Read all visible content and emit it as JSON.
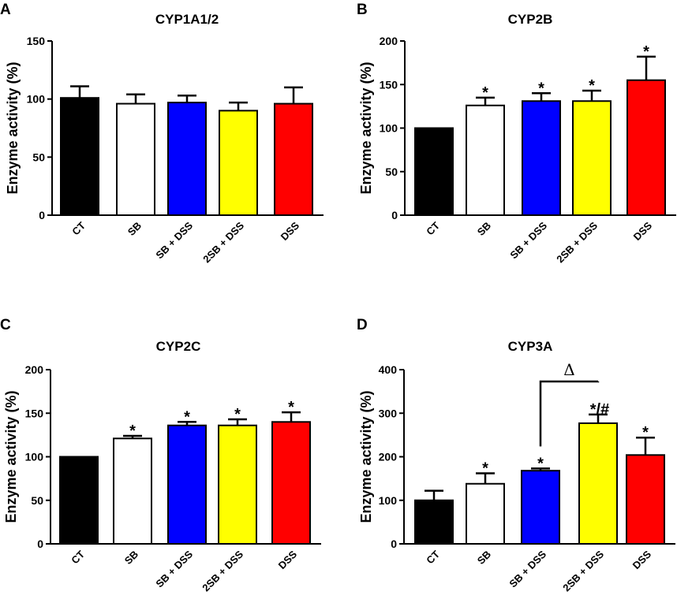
{
  "chart_data": [
    {
      "type": "bar",
      "panel_label": "A",
      "title": "CYP1A1/2",
      "ylabel": "Enzyme activity (%)",
      "xlabel": "",
      "ylim": [
        0,
        150
      ],
      "yticks": [
        0,
        50,
        100,
        150
      ],
      "categories": [
        "CT",
        "SB",
        "SB + DSS",
        "2SB + DSS",
        "DSS"
      ],
      "colors": [
        "#000000",
        "#ffffff",
        "#0000ff",
        "#ffff00",
        "#ff0000"
      ],
      "values": [
        101,
        96,
        97,
        90,
        96
      ],
      "errors": [
        10,
        8,
        6,
        7,
        14
      ],
      "annotations": [
        "",
        "",
        "",
        "",
        ""
      ]
    },
    {
      "type": "bar",
      "panel_label": "B",
      "title": "CYP2B",
      "ylabel": "Enzyme activity (%)",
      "xlabel": "",
      "ylim": [
        0,
        200
      ],
      "yticks": [
        0,
        50,
        100,
        150,
        200
      ],
      "categories": [
        "CT",
        "SB",
        "SB + DSS",
        "2SB + DSS",
        "DSS"
      ],
      "colors": [
        "#000000",
        "#ffffff",
        "#0000ff",
        "#ffff00",
        "#ff0000"
      ],
      "values": [
        100,
        126,
        131,
        131,
        155
      ],
      "errors": [
        0,
        9,
        9,
        12,
        27
      ],
      "annotations": [
        "",
        "*",
        "*",
        "*",
        "*"
      ]
    },
    {
      "type": "bar",
      "panel_label": "C",
      "title": "CYP2C",
      "ylabel": "Enzyme activity (%)",
      "xlabel": "",
      "ylim": [
        0,
        200
      ],
      "yticks": [
        0,
        50,
        100,
        150,
        200
      ],
      "categories": [
        "CT",
        "SB",
        "SB + DSS",
        "2SB + DSS",
        "DSS"
      ],
      "colors": [
        "#000000",
        "#ffffff",
        "#0000ff",
        "#ffff00",
        "#ff0000"
      ],
      "values": [
        100,
        121,
        136,
        136,
        140
      ],
      "errors": [
        0,
        3,
        4,
        7,
        11
      ],
      "annotations": [
        "",
        "*",
        "*",
        "*",
        "*"
      ]
    },
    {
      "type": "bar",
      "panel_label": "D",
      "title": "CYP3A",
      "ylabel": "Enzyme activity (%)",
      "xlabel": "",
      "ylim": [
        0,
        400
      ],
      "yticks": [
        0,
        100,
        200,
        300,
        400
      ],
      "categories": [
        "CT",
        "SB",
        "SB + DSS",
        "2SB + DSS",
        "DSS"
      ],
      "colors": [
        "#000000",
        "#ffffff",
        "#0000ff",
        "#ffff00",
        "#ff0000"
      ],
      "values": [
        100,
        138,
        168,
        277,
        204
      ],
      "errors": [
        22,
        24,
        5,
        20,
        40
      ],
      "annotations": [
        "",
        "*",
        "*",
        "*/#",
        "*"
      ],
      "bracket": {
        "from": 2,
        "to": 3,
        "label": "Δ"
      }
    }
  ]
}
